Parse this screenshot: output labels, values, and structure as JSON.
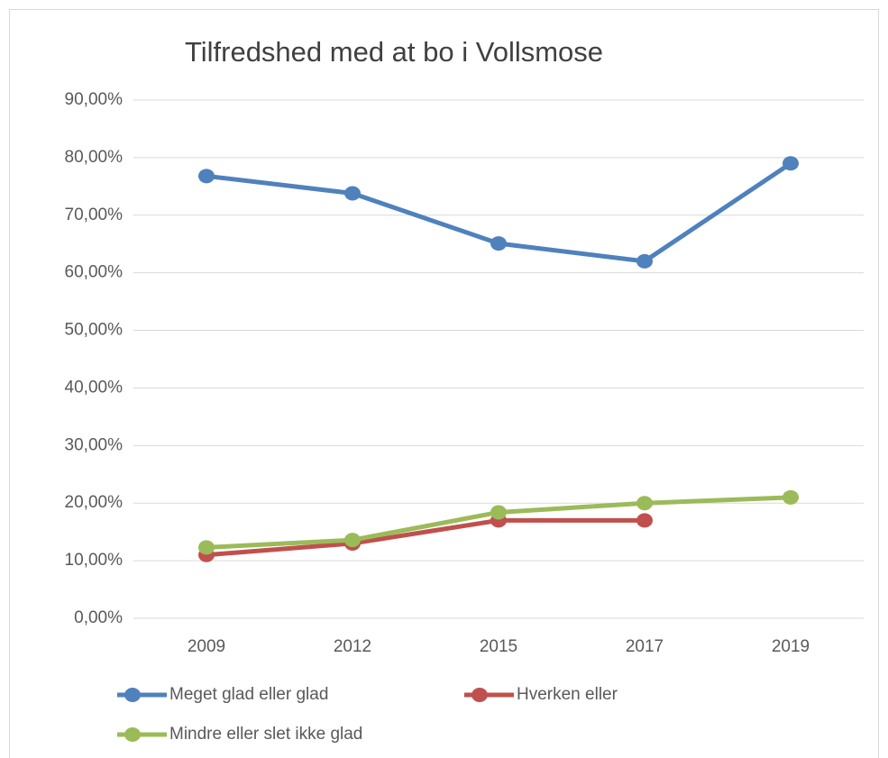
{
  "chart_data": {
    "type": "line",
    "title": "Tilfredshed med at bo i Vollsmose",
    "categories": [
      "2009",
      "2012",
      "2015",
      "2017",
      "2019"
    ],
    "series": [
      {
        "name": "Meget glad eller glad",
        "color": "#4f81bd",
        "values": [
          76.8,
          73.8,
          65.1,
          62.0,
          79.0
        ]
      },
      {
        "name": "Hverken eller",
        "color": "#c0504d",
        "values": [
          11.0,
          13.0,
          17.0,
          17.0,
          null
        ]
      },
      {
        "name": "Mindre eller slet ikke glad",
        "color": "#9bbb59",
        "values": [
          12.3,
          13.6,
          18.4,
          20.0,
          21.0
        ]
      }
    ],
    "ylim": [
      0,
      90
    ],
    "yticks": [
      {
        "value": 0,
        "label": "0,00%"
      },
      {
        "value": 10,
        "label": "10,00%"
      },
      {
        "value": 20,
        "label": "20,00%"
      },
      {
        "value": 30,
        "label": "30,00%"
      },
      {
        "value": 40,
        "label": "40,00%"
      },
      {
        "value": 50,
        "label": "50,00%"
      },
      {
        "value": 60,
        "label": "60,00%"
      },
      {
        "value": 70,
        "label": "70,00%"
      },
      {
        "value": 80,
        "label": "80,00%"
      },
      {
        "value": 90,
        "label": "90,00%"
      }
    ],
    "grid": true
  }
}
